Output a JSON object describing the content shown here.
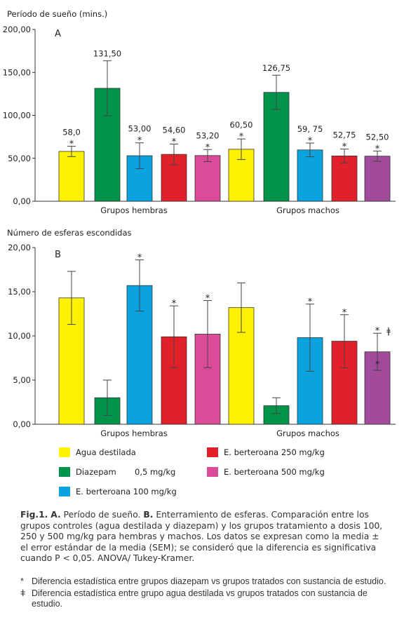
{
  "chart_data": [
    {
      "panel": "A",
      "type": "bar",
      "ylabel": "Período de sueño (mins.)",
      "ylim": [
        0,
        200
      ],
      "yticks": [
        "0,00",
        "50,00",
        "100,00",
        "150,00",
        "200,00"
      ],
      "groups": [
        "Grupos hembras",
        "Grupos machos"
      ],
      "bars": [
        {
          "group": 0,
          "series": 0,
          "value": 58.0,
          "err": 6,
          "label": "58,0",
          "sig": "*",
          "dagger": false
        },
        {
          "group": 0,
          "series": 1,
          "value": 131.5,
          "err": 32,
          "label": "131,50",
          "sig": "",
          "dagger": false
        },
        {
          "group": 0,
          "series": 2,
          "value": 53.0,
          "err": 15,
          "label": "53,00",
          "sig": "*",
          "dagger": false
        },
        {
          "group": 0,
          "series": 3,
          "value": 54.6,
          "err": 12,
          "label": "54,60",
          "sig": "*",
          "dagger": false
        },
        {
          "group": 0,
          "series": 4,
          "value": 53.2,
          "err": 7,
          "label": "53,20",
          "sig": "*",
          "dagger": false
        },
        {
          "group": 1,
          "series": 0,
          "value": 60.5,
          "err": 12,
          "label": "60,50",
          "sig": "*",
          "dagger": false
        },
        {
          "group": 1,
          "series": 1,
          "value": 126.75,
          "err": 20,
          "label": "126,75",
          "sig": "",
          "dagger": false
        },
        {
          "group": 1,
          "series": 2,
          "value": 59.75,
          "err": 8,
          "label": "59, 75",
          "sig": "*",
          "dagger": false
        },
        {
          "group": 1,
          "series": 3,
          "value": 52.75,
          "err": 8,
          "label": "52,75",
          "sig": "*",
          "dagger": false
        },
        {
          "group": 1,
          "series": 5,
          "value": 52.5,
          "err": 6,
          "label": "52,50",
          "sig": "*",
          "dagger": false
        }
      ]
    },
    {
      "panel": "B",
      "type": "bar",
      "ylabel": "Número de esferas escondidas",
      "ylim": [
        0,
        20
      ],
      "yticks": [
        "0,00",
        "5,00",
        "10,00",
        "15,00",
        "20,00"
      ],
      "groups": [
        "Grupos hembras",
        "Grupos machos"
      ],
      "bars": [
        {
          "group": 0,
          "series": 0,
          "value": 14.3,
          "err": 3.0,
          "label": "",
          "sig": "",
          "dagger": false
        },
        {
          "group": 0,
          "series": 1,
          "value": 3.0,
          "err": 2.0,
          "label": "",
          "sig": "",
          "dagger": false
        },
        {
          "group": 0,
          "series": 2,
          "value": 15.7,
          "err": 2.9,
          "label": "",
          "sig": "*",
          "dagger": false
        },
        {
          "group": 0,
          "series": 3,
          "value": 9.9,
          "err": 3.5,
          "label": "",
          "sig": "*",
          "dagger": false
        },
        {
          "group": 0,
          "series": 4,
          "value": 10.2,
          "err": 3.8,
          "label": "",
          "sig": "*",
          "dagger": false
        },
        {
          "group": 1,
          "series": 0,
          "value": 13.2,
          "err": 2.8,
          "label": "",
          "sig": "",
          "dagger": false
        },
        {
          "group": 1,
          "series": 1,
          "value": 2.1,
          "err": 0.9,
          "label": "",
          "sig": "",
          "dagger": false
        },
        {
          "group": 1,
          "series": 2,
          "value": 9.8,
          "err": 3.8,
          "label": "",
          "sig": "*",
          "dagger": false
        },
        {
          "group": 1,
          "series": 3,
          "value": 9.4,
          "err": 3.0,
          "label": "",
          "sig": "*",
          "dagger": false
        },
        {
          "group": 1,
          "series": 5,
          "value": 8.2,
          "err": 2.1,
          "label": "",
          "sig": "*",
          "dagger": true
        }
      ]
    }
  ],
  "legend": [
    {
      "name": "Agua destilada",
      "color": "#fff200"
    },
    {
      "name": "E. berteroana 250 mg/kg",
      "color": "#e2202a"
    },
    {
      "name": "Diazepam",
      "color": "#00934a",
      "dose": "0,5 mg/kg"
    },
    {
      "name": "E. berteroana 500 mg/kg",
      "color": "#db4b98"
    },
    {
      "name": "E. berteroana 100 mg/kg",
      "color": "#0aa3df"
    }
  ],
  "series_colors": [
    "#fff200",
    "#00934a",
    "#0aa3df",
    "#e2202a",
    "#db4b98",
    "#a24b9b"
  ],
  "caption": {
    "fig": "Fig.1.",
    "a_label": "A.",
    "a_text": "Período de sueño.",
    "b_label": "B.",
    "b_text": "Enterramiento de esferas. Comparación entre los grupos controles (agua destilada y diazepam) y los grupos tratamiento a dosis 100, 250 y 500 mg/kg para hembras y machos. Los datos se expresan como la media ± el error estándar de la media (SEM); se consideró que la diferencia es significativa cuando P < 0,05. ANOVA/ Tukey-Kramer."
  },
  "notes": [
    {
      "symbol": "*",
      "text": "Diferencia estadística entre grupos diazepam vs grupos tratados con sustancia de estudio."
    },
    {
      "symbol": "ǂ",
      "text": "Diferencia estadística entre grupo agua destilada vs grupos tratados con sustancia de estudio."
    }
  ]
}
